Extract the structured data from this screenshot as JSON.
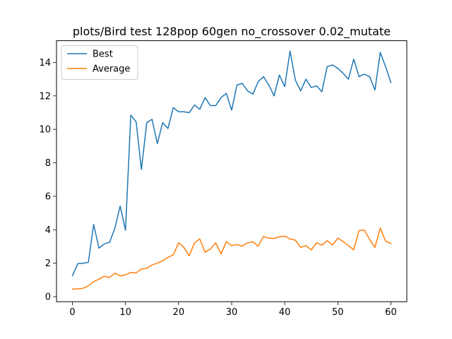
{
  "chart_data": {
    "type": "line",
    "title": "plots/Bird test 128pop 60gen no_crossover 0.02_mutate",
    "xlabel": "",
    "ylabel": "",
    "xlim": [
      -3,
      63
    ],
    "ylim": [
      -0.3,
      15.3
    ],
    "xticks": [
      0,
      10,
      20,
      30,
      40,
      50,
      60
    ],
    "yticks": [
      0,
      2,
      4,
      6,
      8,
      10,
      12,
      14
    ],
    "grid": false,
    "legend": "top-left",
    "x": [
      0,
      1,
      2,
      3,
      4,
      5,
      6,
      7,
      8,
      9,
      10,
      11,
      12,
      13,
      14,
      15,
      16,
      17,
      18,
      19,
      20,
      21,
      22,
      23,
      24,
      25,
      26,
      27,
      28,
      29,
      30,
      31,
      32,
      33,
      34,
      35,
      36,
      37,
      38,
      39,
      40,
      41,
      42,
      43,
      44,
      45,
      46,
      47,
      48,
      49,
      50,
      51,
      52,
      53,
      54,
      55,
      56,
      57,
      58,
      59,
      60
    ],
    "series": [
      {
        "name": "Best",
        "color": "#1f77b4",
        "values": [
          1.25,
          1.97,
          2.0,
          2.05,
          4.32,
          2.9,
          3.15,
          3.25,
          4.1,
          5.42,
          3.97,
          10.85,
          10.45,
          7.6,
          10.4,
          10.6,
          9.15,
          10.4,
          10.05,
          11.3,
          11.05,
          11.05,
          11.0,
          11.45,
          11.2,
          11.9,
          11.42,
          11.42,
          11.9,
          12.15,
          11.15,
          12.65,
          12.75,
          12.3,
          12.1,
          12.85,
          13.15,
          12.65,
          12.0,
          13.25,
          12.55,
          14.68,
          12.95,
          12.3,
          13.0,
          12.5,
          12.6,
          12.25,
          13.75,
          13.85,
          13.65,
          13.35,
          13.0,
          14.2,
          13.15,
          13.3,
          13.15,
          12.35,
          14.6,
          13.75,
          12.8
        ]
      },
      {
        "name": "Average",
        "color": "#ff7f0e",
        "values": [
          0.45,
          0.47,
          0.5,
          0.65,
          0.9,
          1.05,
          1.22,
          1.15,
          1.4,
          1.25,
          1.3,
          1.45,
          1.42,
          1.65,
          1.7,
          1.9,
          2.0,
          2.15,
          2.35,
          2.5,
          3.22,
          2.95,
          2.45,
          3.22,
          3.45,
          2.65,
          2.85,
          3.22,
          2.55,
          3.3,
          3.05,
          3.12,
          3.02,
          3.22,
          3.28,
          3.02,
          3.6,
          3.5,
          3.48,
          3.58,
          3.62,
          3.45,
          3.38,
          2.95,
          3.05,
          2.8,
          3.22,
          3.08,
          3.35,
          3.08,
          3.5,
          3.3,
          3.05,
          2.8,
          3.95,
          3.98,
          3.42,
          2.95,
          4.1,
          3.32,
          3.18
        ]
      }
    ]
  }
}
